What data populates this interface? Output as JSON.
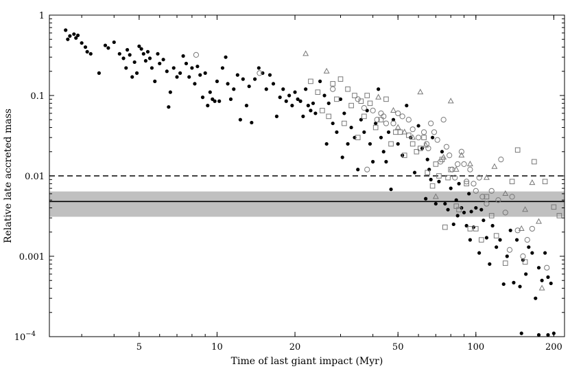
{
  "chart_data": {
    "type": "scatter",
    "x_scale": "log",
    "y_scale": "log",
    "xlim": [
      2.25,
      220
    ],
    "ylim": [
      0.0001,
      1
    ],
    "xlabel": "Time of last giant impact (Myr)",
    "ylabel": "Relative late accreted mass",
    "x_ticks": [
      {
        "value": 5,
        "label": "5"
      },
      {
        "value": 10,
        "label": "10"
      },
      {
        "value": 20,
        "label": "20"
      },
      {
        "value": 50,
        "label": "50"
      },
      {
        "value": 100,
        "label": "100"
      },
      {
        "value": 200,
        "label": "200"
      }
    ],
    "y_ticks": [
      {
        "value": 1,
        "label": "1"
      },
      {
        "value": 0.1,
        "label": "0.1"
      },
      {
        "value": 0.01,
        "label": "0.01"
      },
      {
        "value": 0.001,
        "label": "0.001"
      },
      {
        "value": 0.0001,
        "label": "10",
        "sup": "−4"
      }
    ],
    "reference_lines": [
      {
        "y": 0.01,
        "style": "dashed"
      },
      {
        "y": 0.0048,
        "style": "solid"
      }
    ],
    "shaded_band": {
      "y_min": 0.0031,
      "y_max": 0.0064,
      "color": "#c0c0c0"
    },
    "series": [
      {
        "marker": "filled-circle",
        "points": [
          [
            2.6,
            0.65
          ],
          [
            2.65,
            0.5
          ],
          [
            2.7,
            0.55
          ],
          [
            2.8,
            0.58
          ],
          [
            2.85,
            0.52
          ],
          [
            2.9,
            0.56
          ],
          [
            3.0,
            0.45
          ],
          [
            3.1,
            0.4
          ],
          [
            3.15,
            0.35
          ],
          [
            3.25,
            0.33
          ],
          [
            3.5,
            0.19
          ],
          [
            3.7,
            0.42
          ],
          [
            3.8,
            0.39
          ],
          [
            4.0,
            0.46
          ],
          [
            4.2,
            0.33
          ],
          [
            4.35,
            0.29
          ],
          [
            4.45,
            0.22
          ],
          [
            4.5,
            0.37
          ],
          [
            4.6,
            0.32
          ],
          [
            4.7,
            0.17
          ],
          [
            4.8,
            0.26
          ],
          [
            4.9,
            0.19
          ],
          [
            5.0,
            0.41
          ],
          [
            5.1,
            0.38
          ],
          [
            5.2,
            0.33
          ],
          [
            5.3,
            0.27
          ],
          [
            5.4,
            0.35
          ],
          [
            5.5,
            0.29
          ],
          [
            5.6,
            0.22
          ],
          [
            5.75,
            0.15
          ],
          [
            5.9,
            0.33
          ],
          [
            6.0,
            0.25
          ],
          [
            6.2,
            0.28
          ],
          [
            6.4,
            0.2
          ],
          [
            6.5,
            0.072
          ],
          [
            6.6,
            0.11
          ],
          [
            6.8,
            0.22
          ],
          [
            7.0,
            0.17
          ],
          [
            7.2,
            0.19
          ],
          [
            7.4,
            0.31
          ],
          [
            7.6,
            0.25
          ],
          [
            7.8,
            0.17
          ],
          [
            8.0,
            0.22
          ],
          [
            8.2,
            0.14
          ],
          [
            8.4,
            0.23
          ],
          [
            8.6,
            0.18
          ],
          [
            8.8,
            0.095
          ],
          [
            9.0,
            0.19
          ],
          [
            9.2,
            0.075
          ],
          [
            9.4,
            0.11
          ],
          [
            9.6,
            0.09
          ],
          [
            9.8,
            0.085
          ],
          [
            10.0,
            0.15
          ],
          [
            10.2,
            0.085
          ],
          [
            10.5,
            0.22
          ],
          [
            10.8,
            0.3
          ],
          [
            11.0,
            0.14
          ],
          [
            11.3,
            0.09
          ],
          [
            11.6,
            0.12
          ],
          [
            12.0,
            0.18
          ],
          [
            12.3,
            0.05
          ],
          [
            12.6,
            0.16
          ],
          [
            13.0,
            0.075
          ],
          [
            13.3,
            0.13
          ],
          [
            13.6,
            0.046
          ],
          [
            14.0,
            0.16
          ],
          [
            14.5,
            0.22
          ],
          [
            15.0,
            0.19
          ],
          [
            15.5,
            0.12
          ],
          [
            16.0,
            0.18
          ],
          [
            16.5,
            0.14
          ],
          [
            17.0,
            0.055
          ],
          [
            17.5,
            0.095
          ],
          [
            18.0,
            0.12
          ],
          [
            18.5,
            0.085
          ],
          [
            19.0,
            0.1
          ],
          [
            19.5,
            0.075
          ],
          [
            20.0,
            0.11
          ],
          [
            20.5,
            0.09
          ],
          [
            21.0,
            0.085
          ],
          [
            21.5,
            0.055
          ],
          [
            22.0,
            0.12
          ],
          [
            22.5,
            0.075
          ],
          [
            23.0,
            0.065
          ],
          [
            23.5,
            0.08
          ],
          [
            24.0,
            0.06
          ],
          [
            25.0,
            0.15
          ],
          [
            26.0,
            0.1
          ],
          [
            26.5,
            0.025
          ],
          [
            27.0,
            0.08
          ],
          [
            28.0,
            0.045
          ],
          [
            29.0,
            0.035
          ],
          [
            30.0,
            0.09
          ],
          [
            30.5,
            0.017
          ],
          [
            31.0,
            0.06
          ],
          [
            32.0,
            0.025
          ],
          [
            33.0,
            0.04
          ],
          [
            34.0,
            0.03
          ],
          [
            35.0,
            0.012
          ],
          [
            36.0,
            0.05
          ],
          [
            37.0,
            0.035
          ],
          [
            38.0,
            0.065
          ],
          [
            39.0,
            0.025
          ],
          [
            40.0,
            0.015
          ],
          [
            41.0,
            0.045
          ],
          [
            42.0,
            0.12
          ],
          [
            43.0,
            0.03
          ],
          [
            44.0,
            0.02
          ],
          [
            45.0,
            0.015
          ],
          [
            46.0,
            0.035
          ],
          [
            47.0,
            0.0068
          ],
          [
            48.0,
            0.05
          ],
          [
            50.0,
            0.025
          ],
          [
            52.0,
            0.018
          ],
          [
            54.0,
            0.075
          ],
          [
            56.0,
            0.03
          ],
          [
            58.0,
            0.011
          ],
          [
            60.0,
            0.042
          ],
          [
            62.0,
            0.022
          ],
          [
            64.0,
            0.0052
          ],
          [
            65.0,
            0.016
          ],
          [
            66.0,
            0.012
          ],
          [
            67.0,
            0.009
          ],
          [
            68.0,
            0.03
          ],
          [
            70.0,
            0.0045
          ],
          [
            72.0,
            0.0085
          ],
          [
            74.0,
            0.02
          ],
          [
            76.0,
            0.0045
          ],
          [
            78.0,
            0.0038
          ],
          [
            80.0,
            0.007
          ],
          [
            82.0,
            0.0025
          ],
          [
            84.0,
            0.005
          ],
          [
            85.0,
            0.0032
          ],
          [
            86.0,
            0.008
          ],
          [
            88.0,
            0.004
          ],
          [
            90.0,
            0.0035
          ],
          [
            92.0,
            0.0024
          ],
          [
            94.0,
            0.006
          ],
          [
            95.0,
            0.0016
          ],
          [
            96.0,
            0.0036
          ],
          [
            98.0,
            0.0023
          ],
          [
            100.0,
            0.004
          ],
          [
            103.0,
            0.0011
          ],
          [
            105.0,
            0.0038
          ],
          [
            107.0,
            0.0028
          ],
          [
            110.0,
            0.0017
          ],
          [
            113.0,
            0.0008
          ],
          [
            116.0,
            0.0024
          ],
          [
            120.0,
            0.0013
          ],
          [
            124.0,
            0.0016
          ],
          [
            128.0,
            0.00045
          ],
          [
            132.0,
            0.001
          ],
          [
            136.0,
            0.0021
          ],
          [
            140.0,
            0.00047
          ],
          [
            144.0,
            0.0016
          ],
          [
            148.0,
            0.00042
          ],
          [
            152.0,
            0.0009
          ],
          [
            156.0,
            0.0006
          ],
          [
            160.0,
            0.0013
          ],
          [
            165.0,
            0.0011
          ],
          [
            170.0,
            0.0003
          ],
          [
            175.0,
            0.00072
          ],
          [
            180.0,
            0.0005
          ],
          [
            185.0,
            0.0011
          ],
          [
            190.0,
            0.00055
          ],
          [
            195.0,
            0.00046
          ],
          [
            150.0,
            0.00011
          ],
          [
            175.0,
            0.000105
          ],
          [
            190.0,
            0.000105
          ],
          [
            200.0,
            0.00011
          ]
        ]
      },
      {
        "marker": "open-circle",
        "points": [
          [
            8.3,
            0.32
          ],
          [
            14.6,
            0.19
          ],
          [
            28.0,
            0.12
          ],
          [
            35.0,
            0.09
          ],
          [
            37.0,
            0.07
          ],
          [
            40.0,
            0.065
          ],
          [
            41.5,
            0.05
          ],
          [
            43.0,
            0.06
          ],
          [
            44.0,
            0.055
          ],
          [
            45.0,
            0.045
          ],
          [
            38.0,
            0.012
          ],
          [
            48.0,
            0.045
          ],
          [
            50.0,
            0.06
          ],
          [
            52.0,
            0.055
          ],
          [
            55.0,
            0.05
          ],
          [
            57.0,
            0.038
          ],
          [
            60.0,
            0.03
          ],
          [
            63.0,
            0.035
          ],
          [
            64.5,
            0.025
          ],
          [
            65.5,
            0.022
          ],
          [
            67.0,
            0.045
          ],
          [
            69.0,
            0.035
          ],
          [
            71.0,
            0.028
          ],
          [
            73.0,
            0.015
          ],
          [
            75.0,
            0.05
          ],
          [
            77.0,
            0.023
          ],
          [
            79.0,
            0.018
          ],
          [
            81.0,
            0.012
          ],
          [
            83.0,
            0.0095
          ],
          [
            85.0,
            0.014
          ],
          [
            88.0,
            0.02
          ],
          [
            90.0,
            0.014
          ],
          [
            92.0,
            0.0085
          ],
          [
            95.0,
            0.012
          ],
          [
            98.0,
            0.008
          ],
          [
            100.0,
            0.0065
          ],
          [
            103.0,
            0.0095
          ],
          [
            106.0,
            0.0055
          ],
          [
            110.0,
            0.0045
          ],
          [
            115.0,
            0.0065
          ],
          [
            122.0,
            0.005
          ],
          [
            125.0,
            0.016
          ],
          [
            130.0,
            0.0035
          ],
          [
            135.0,
            0.0012
          ],
          [
            138.0,
            0.0055
          ],
          [
            145.0,
            0.0021
          ],
          [
            152.0,
            0.001
          ],
          [
            158.0,
            0.0016
          ],
          [
            165.0,
            0.0022
          ],
          [
            188.0,
            0.00072
          ]
        ]
      },
      {
        "marker": "open-square",
        "points": [
          [
            23.0,
            0.15
          ],
          [
            24.5,
            0.11
          ],
          [
            25.5,
            0.065
          ],
          [
            27.0,
            0.055
          ],
          [
            28.0,
            0.14
          ],
          [
            29.0,
            0.09
          ],
          [
            30.0,
            0.16
          ],
          [
            31.0,
            0.045
          ],
          [
            32.0,
            0.12
          ],
          [
            33.0,
            0.075
          ],
          [
            34.0,
            0.1
          ],
          [
            35.0,
            0.03
          ],
          [
            36.0,
            0.085
          ],
          [
            37.0,
            0.055
          ],
          [
            38.0,
            0.1
          ],
          [
            39.0,
            0.08
          ],
          [
            41.0,
            0.04
          ],
          [
            43.0,
            0.05
          ],
          [
            45.0,
            0.09
          ],
          [
            47.0,
            0.025
          ],
          [
            49.0,
            0.035
          ],
          [
            51.0,
            0.035
          ],
          [
            53.0,
            0.018
          ],
          [
            55.0,
            0.032
          ],
          [
            57.0,
            0.025
          ],
          [
            59.0,
            0.02
          ],
          [
            61.0,
            0.022
          ],
          [
            63.0,
            0.03
          ],
          [
            65.0,
            0.011
          ],
          [
            68.0,
            0.0075
          ],
          [
            70.0,
            0.014
          ],
          [
            72.0,
            0.01
          ],
          [
            74.0,
            0.016
          ],
          [
            76.0,
            0.0023
          ],
          [
            78.0,
            0.0095
          ],
          [
            80.0,
            0.012
          ],
          [
            84.0,
            0.0042
          ],
          [
            86.0,
            0.0038
          ],
          [
            92.0,
            0.008
          ],
          [
            95.0,
            0.0022
          ],
          [
            100.0,
            0.0022
          ],
          [
            105.0,
            0.0016
          ],
          [
            110.0,
            0.0055
          ],
          [
            115.0,
            0.0032
          ],
          [
            120.0,
            0.0018
          ],
          [
            130.0,
            0.00082
          ],
          [
            138.0,
            0.0085
          ],
          [
            145.0,
            0.021
          ],
          [
            155.0,
            0.00085
          ],
          [
            168.0,
            0.015
          ],
          [
            185.0,
            0.0085
          ],
          [
            200.0,
            0.0041
          ],
          [
            210.0,
            0.0032
          ]
        ]
      },
      {
        "marker": "open-triangle",
        "points": [
          [
            22.0,
            0.33
          ],
          [
            26.5,
            0.2
          ],
          [
            42.0,
            0.095
          ],
          [
            48.0,
            0.065
          ],
          [
            50.0,
            0.04
          ],
          [
            53.0,
            0.035
          ],
          [
            57.0,
            0.03
          ],
          [
            61.0,
            0.11
          ],
          [
            64.0,
            0.024
          ],
          [
            70.0,
            0.0055
          ],
          [
            75.0,
            0.017
          ],
          [
            80.0,
            0.085
          ],
          [
            84.0,
            0.012
          ],
          [
            88.0,
            0.018
          ],
          [
            95.0,
            0.014
          ],
          [
            110.0,
            0.0095
          ],
          [
            118.0,
            0.013
          ],
          [
            130.0,
            0.006
          ],
          [
            150.0,
            0.0022
          ],
          [
            155.0,
            0.0038
          ],
          [
            165.0,
            0.0082
          ],
          [
            175.0,
            0.0027
          ],
          [
            180.0,
            0.0004
          ]
        ]
      }
    ]
  }
}
